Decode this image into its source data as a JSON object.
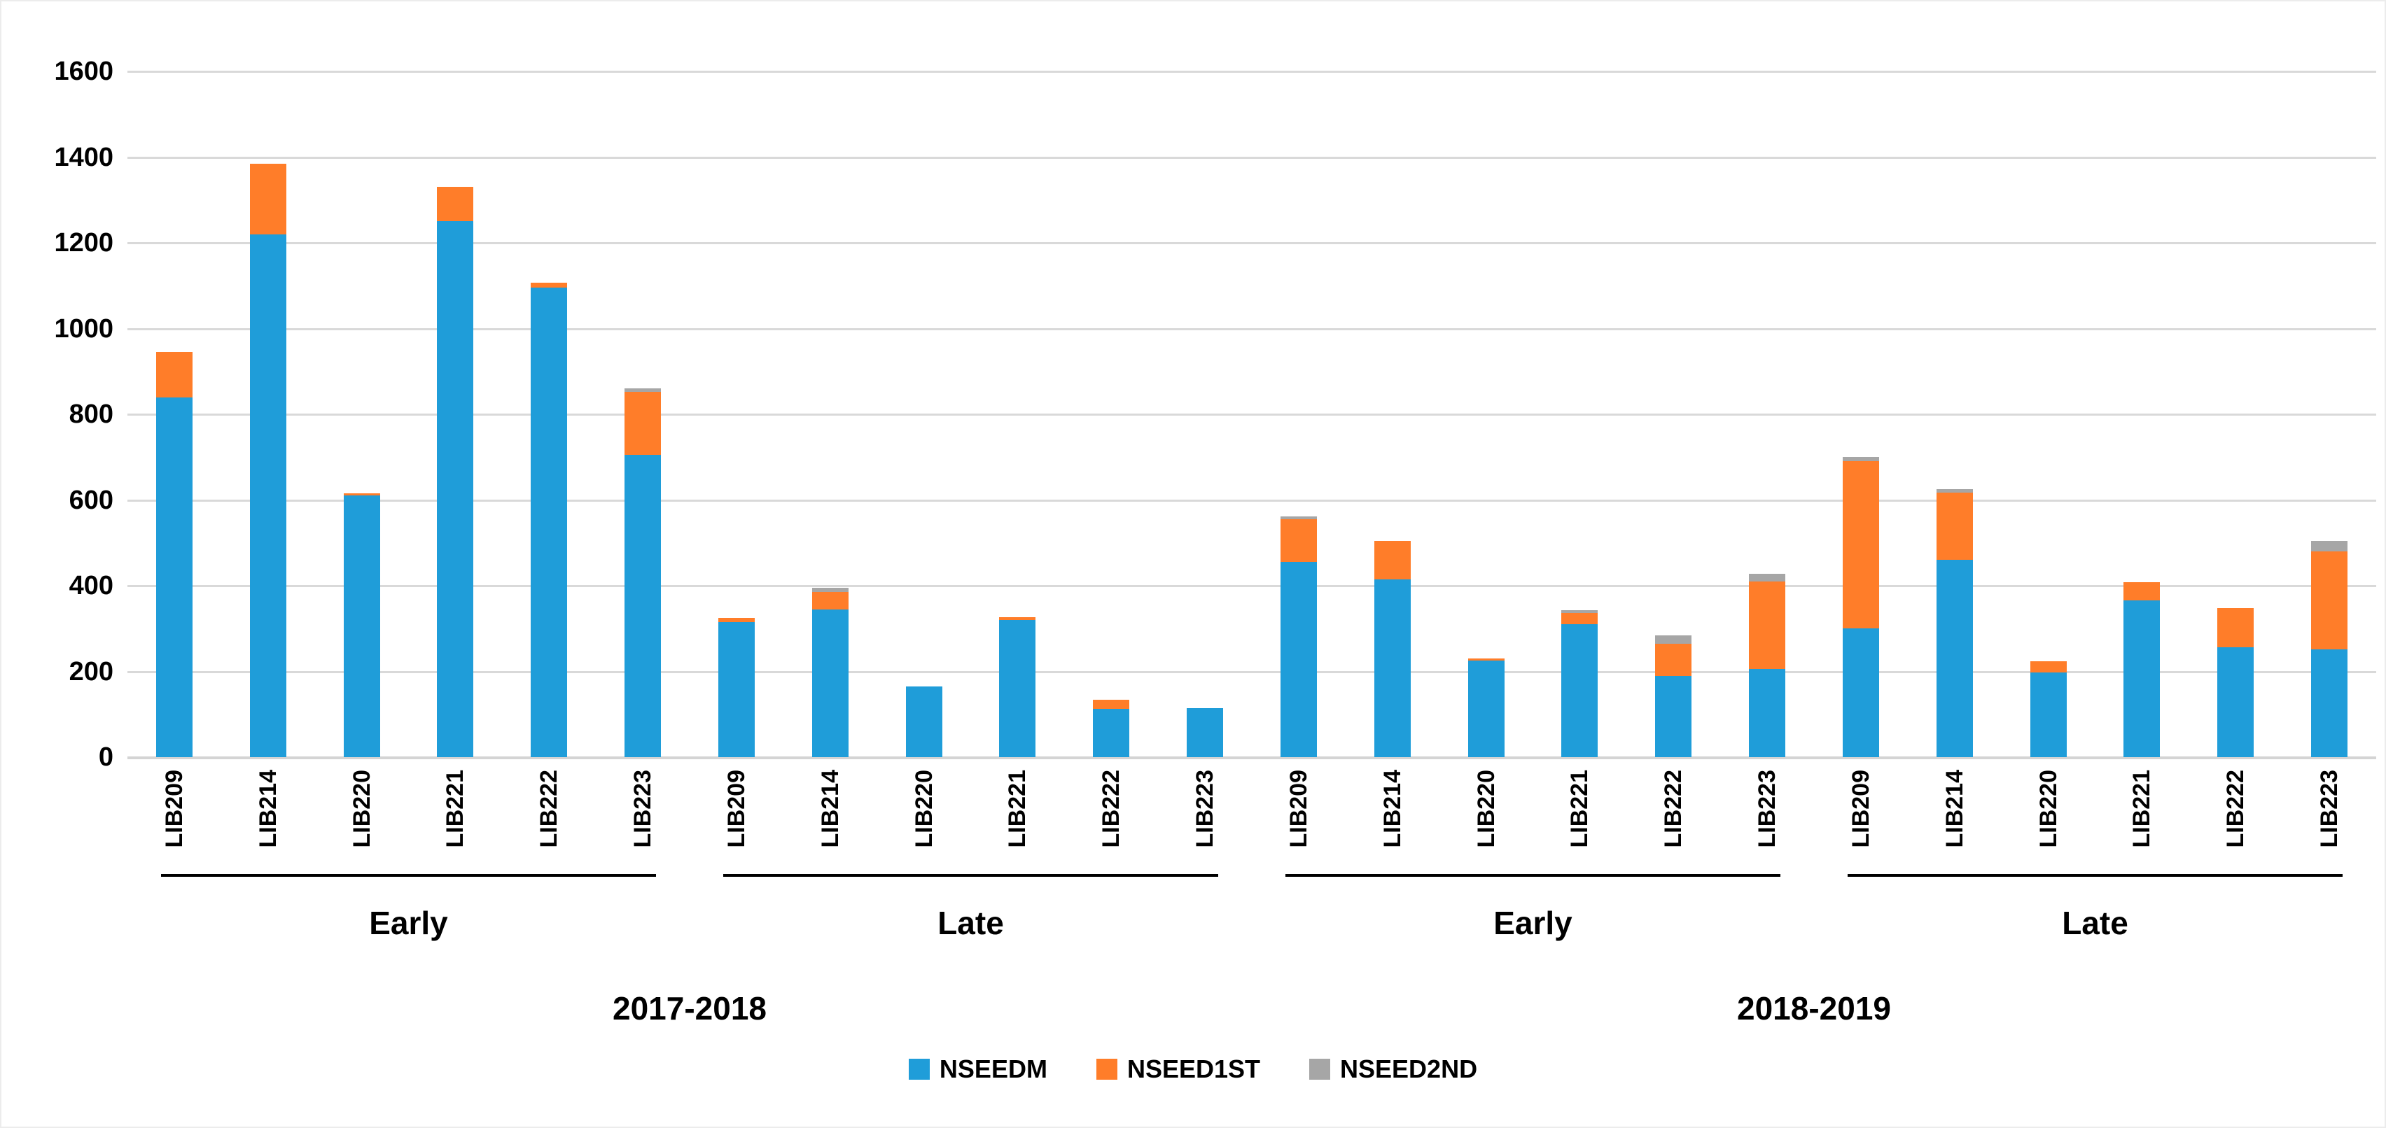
{
  "chart_data": {
    "type": "bar",
    "stacked": true,
    "orientation": "vertical",
    "title": "",
    "xlabel": "",
    "ylabel": "",
    "ylim": [
      0,
      1600
    ],
    "ytick_step": 200,
    "yticks": [
      0,
      200,
      400,
      600,
      800,
      1000,
      1200,
      1400,
      1600
    ],
    "grid": true,
    "background": "#ffffff",
    "gridline_color": "#d9d9d9",
    "legend_position": "bottom",
    "categories_per_group": [
      "LIB209",
      "LIB214",
      "LIB220",
      "LIB221",
      "LIB222",
      "LIB223"
    ],
    "groups": [
      {
        "year": "2017-2018",
        "semester": "Early"
      },
      {
        "year": "2017-2018",
        "semester": "Late"
      },
      {
        "year": "2018-2019",
        "semester": "Early"
      },
      {
        "year": "2018-2019",
        "semester": "Late"
      }
    ],
    "years": [
      "2017-2018",
      "2018-2019"
    ],
    "series": [
      {
        "name": "NSEEDM",
        "color": "#1f9dd9",
        "values": [
          840,
          1220,
          610,
          1250,
          1095,
          705,
          315,
          345,
          165,
          320,
          112,
          115,
          455,
          415,
          225,
          310,
          190,
          205,
          300,
          460,
          197,
          366,
          257,
          252
        ]
      },
      {
        "name": "NSEED1ST",
        "color": "#ff7d29",
        "values": [
          105,
          165,
          6,
          80,
          12,
          148,
          10,
          40,
          0,
          7,
          22,
          0,
          100,
          90,
          5,
          27,
          74,
          205,
          390,
          157,
          26,
          42,
          90,
          228
        ]
      },
      {
        "name": "NSEED2ND",
        "color": "#a6a6a6",
        "values": [
          0,
          0,
          0,
          0,
          0,
          7,
          0,
          10,
          0,
          0,
          0,
          0,
          7,
          0,
          0,
          6,
          20,
          18,
          10,
          8,
          0,
          0,
          0,
          25
        ]
      }
    ],
    "totals": [
      945,
      1385,
      616,
      1330,
      1107,
      860,
      325,
      395,
      165,
      327,
      134,
      115,
      562,
      505,
      230,
      343,
      284,
      428,
      700,
      625,
      223,
      408,
      347,
      505
    ]
  }
}
